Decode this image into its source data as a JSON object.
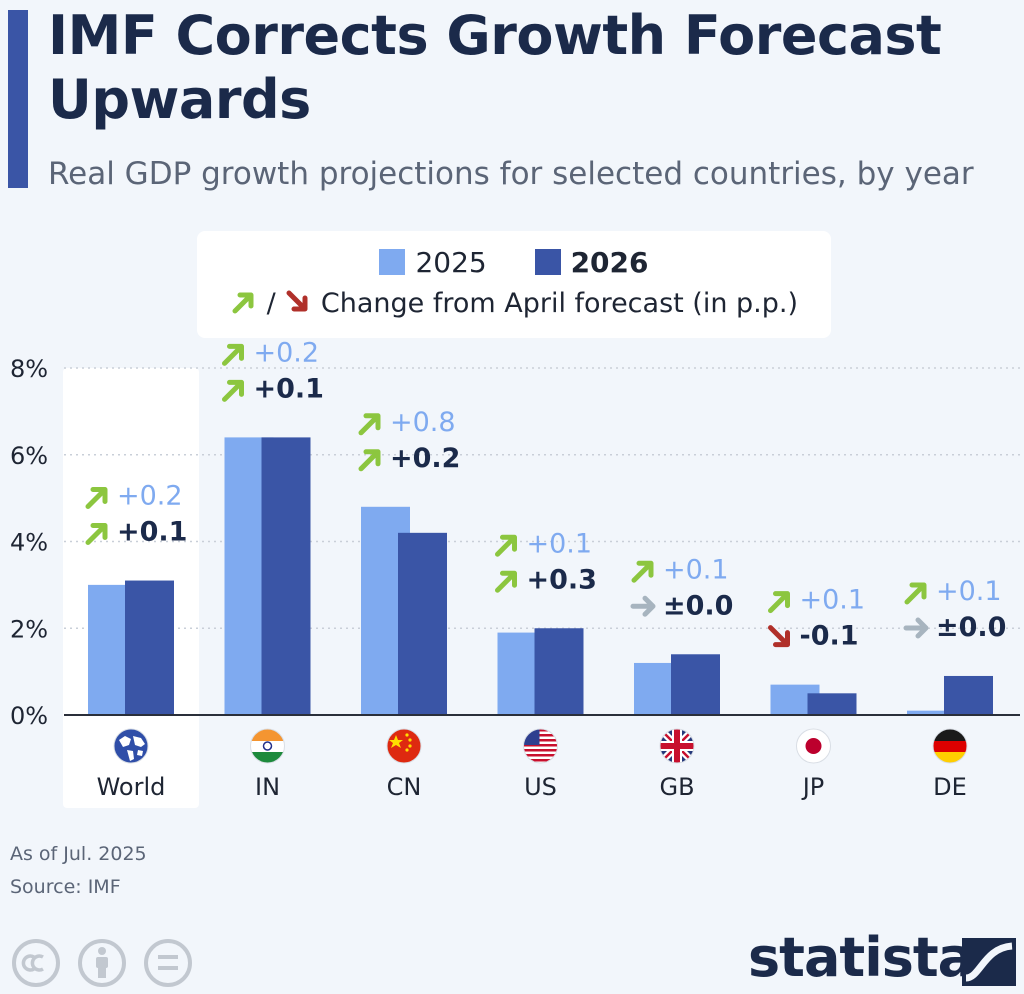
{
  "header": {
    "title": "IMF Corrects Growth Forecast Upwards",
    "subtitle": "Real GDP growth projections for selected countries, by year"
  },
  "legend": {
    "items": [
      {
        "label": "2025",
        "color": "#7faaf0"
      },
      {
        "label": "2026",
        "color": "#3a55a6"
      }
    ],
    "separator": "/",
    "change_label": "Change from April forecast (in p.p.)"
  },
  "chart_data": {
    "type": "bar",
    "categories": [
      "World",
      "IN",
      "CN",
      "US",
      "GB",
      "JP",
      "DE"
    ],
    "flags": [
      "globe-icon",
      "india-flag-icon",
      "china-flag-icon",
      "us-flag-icon",
      "uk-flag-icon",
      "japan-flag-icon",
      "germany-flag-icon"
    ],
    "highlight_category": "World",
    "series": [
      {
        "name": "2025",
        "color": "#7faaf0",
        "values": [
          3.0,
          6.4,
          4.8,
          1.9,
          1.2,
          0.7,
          0.1
        ],
        "changes": [
          "+0.2",
          "+0.2",
          "+0.8",
          "+0.1",
          "+0.1",
          "+0.1",
          "+0.1"
        ],
        "directions": [
          "up",
          "up",
          "up",
          "up",
          "up",
          "up",
          "up"
        ]
      },
      {
        "name": "2026",
        "color": "#3a55a6",
        "values": [
          3.1,
          6.4,
          4.2,
          2.0,
          1.4,
          0.5,
          0.9
        ],
        "changes": [
          "+0.1",
          "+0.1",
          "+0.2",
          "+0.3",
          "±0.0",
          "-0.1",
          "±0.0"
        ],
        "directions": [
          "up",
          "up",
          "up",
          "up",
          "flat",
          "down",
          "flat"
        ]
      }
    ],
    "yticks": [
      "0%",
      "2%",
      "4%",
      "6%",
      "8%"
    ],
    "ylim": [
      0,
      8
    ],
    "grid": true,
    "arrow_colors": {
      "up": "#8cc63f",
      "down": "#b0302a",
      "flat": "#a7b4bf"
    }
  },
  "footer": {
    "note": "As of Jul. 2025",
    "source": "Source: IMF",
    "brand": "statista"
  }
}
